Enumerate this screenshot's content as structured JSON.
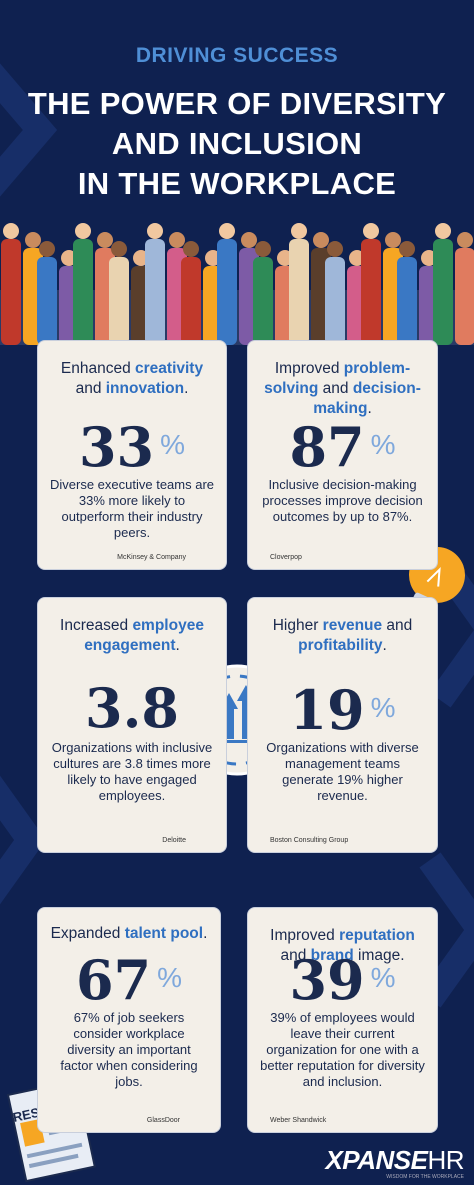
{
  "header": {
    "kicker": "DRIVING SUCCESS",
    "title_lines": [
      "THE POWER OF DIVERSITY",
      "AND INCLUSION",
      "IN THE WORKPLACE"
    ]
  },
  "cards": [
    {
      "heading": [
        {
          "text": "Enhanced ",
          "highlight": false
        },
        {
          "text": "creativity",
          "highlight": true
        },
        {
          "text": " and ",
          "highlight": false
        },
        {
          "text": "innovation",
          "highlight": true
        },
        {
          "text": ".",
          "highlight": false
        }
      ],
      "stat": "33",
      "unit": "%",
      "description": "Diverse executive teams are 33% more likely to outperform their industry peers.",
      "source": "McKinsey & Company"
    },
    {
      "heading": [
        {
          "text": "Improved ",
          "highlight": false
        },
        {
          "text": "problem-solving",
          "highlight": true
        },
        {
          "text": " and ",
          "highlight": false
        },
        {
          "text": "decision-making",
          "highlight": true
        },
        {
          "text": ".",
          "highlight": false
        }
      ],
      "stat": "87",
      "unit": "%",
      "description": "Inclusive decision-making processes improve decision outcomes by up to 87%.",
      "source": "Cloverpop"
    },
    {
      "heading": [
        {
          "text": "Increased ",
          "highlight": false
        },
        {
          "text": "employee engagement",
          "highlight": true
        },
        {
          "text": ".",
          "highlight": false
        }
      ],
      "stat": "3.8",
      "description": "Organizations with inclusive cultures are 3.8 times more likely to have engaged employees.",
      "source": "Deloitte"
    },
    {
      "heading": [
        {
          "text": "Higher ",
          "highlight": false
        },
        {
          "text": "revenue",
          "highlight": true
        },
        {
          "text": " and ",
          "highlight": false
        },
        {
          "text": "profitability",
          "highlight": true
        },
        {
          "text": ".",
          "highlight": false
        }
      ],
      "stat": "19",
      "unit": "%",
      "description": "Organizations with diverse management teams generate 19% higher revenue.",
      "source": "Boston Consulting Group"
    },
    {
      "heading": [
        {
          "text": "Expanded ",
          "highlight": false
        },
        {
          "text": "talent pool",
          "highlight": true
        },
        {
          "text": ".",
          "highlight": false
        }
      ],
      "stat": "67",
      "unit": "%",
      "description": "67% of job seekers consider workplace diversity an important factor when considering jobs.",
      "source": "GlassDoor"
    },
    {
      "heading": [
        {
          "text": "Improved ",
          "highlight": false
        },
        {
          "text": "reputation",
          "highlight": true
        },
        {
          "text": " and ",
          "highlight": false
        },
        {
          "text": "brand",
          "highlight": true
        },
        {
          "text": " image.",
          "highlight": false
        }
      ],
      "stat": "39",
      "unit": "%",
      "description": "39% of employees would leave their current organization for one with a better reputation for diversity and inclusion.",
      "source": "Weber Shandwick"
    }
  ],
  "resume_label": "RESUME",
  "logo": {
    "brand": "XPANSE",
    "brand_suffix": "HR",
    "tagline": "WISDOM FOR THE WORKPLACE"
  }
}
